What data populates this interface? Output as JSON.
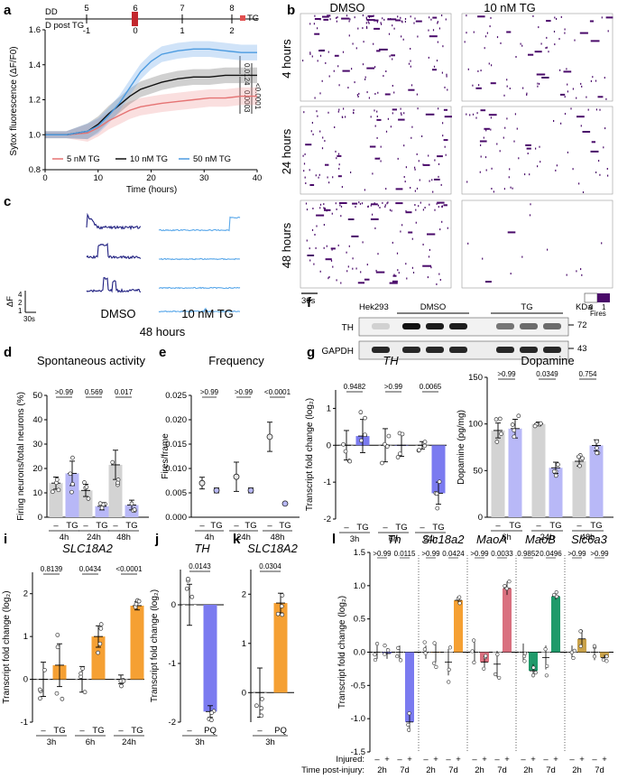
{
  "panel_labels": [
    "a",
    "b",
    "c",
    "d",
    "e",
    "f",
    "g",
    "h",
    "i",
    "j",
    "k",
    "l"
  ],
  "colors": {
    "tg_blue": "#7b7bf0",
    "tg_blue_light": "#b8b8f7",
    "orange": "#f5a033",
    "grey": "#d3d3d3",
    "dark_blue": "#1f1f80",
    "pink": "#d9707f",
    "green": "#1f9a6a",
    "gold": "#c9a24a",
    "raster_purple": "#4a0a6a"
  },
  "panel_a": {
    "timeline": {
      "dd_label": "DD",
      "post_label": "D post TG",
      "dd_ticks": [
        "5",
        "6",
        "7",
        "8"
      ],
      "post_ticks": [
        "-1",
        "0",
        "1",
        "2"
      ],
      "tg_label": "TG"
    },
    "ylabel": "Sytox fluorescence (ΔF/F0)",
    "xlabel": "Time (hours)",
    "legend": [
      "5 nM TG",
      "10 nM TG",
      "50 nM TG"
    ],
    "pvalues": [
      "<0.0001",
      "0.0003",
      "0.0124"
    ]
  },
  "panel_b": {
    "col_headers": [
      "DMSO",
      "10 nM TG"
    ],
    "row_labels": [
      "4 hours",
      "24 hours",
      "48 hours"
    ],
    "scalebar": "30s",
    "colorbar_ticks": [
      "0",
      "1"
    ],
    "colorbar_label": "Fires"
  },
  "panel_c": {
    "conditions": [
      "DMSO",
      "10 nM TG"
    ],
    "time": "48 hours",
    "scale_y": "ΔF",
    "scale_y_ticks": [
      "4",
      "2",
      "1"
    ],
    "scale_x": "30s"
  },
  "panel_f": {
    "lanes": [
      "Hek293",
      "DMSO",
      "TG"
    ],
    "unit": "KDa",
    "proteins": [
      "TH",
      "GAPDH"
    ],
    "markers": [
      "72",
      "43"
    ]
  },
  "chart_data": [
    {
      "panel": "a",
      "type": "line",
      "xlabel": "Time (hours)",
      "ylabel": "Sytox fluorescence (ΔF/F0)",
      "xlim": [
        0,
        40
      ],
      "ylim": [
        0.8,
        1.6
      ],
      "xticks": [
        "0",
        "10",
        "20",
        "30",
        "40"
      ],
      "yticks": [
        "0.8",
        "1.0",
        "1.2",
        "1.4",
        "1.6"
      ],
      "series": [
        {
          "name": "5 nM TG",
          "x": [
            0,
            4,
            8,
            10,
            12,
            14,
            16,
            18,
            20,
            22,
            25,
            28,
            31,
            34,
            37,
            40
          ],
          "y": [
            1.0,
            1.0,
            1.01,
            1.04,
            1.08,
            1.11,
            1.14,
            1.16,
            1.17,
            1.18,
            1.19,
            1.2,
            1.21,
            1.21,
            1.22,
            1.22
          ]
        },
        {
          "name": "10 nM TG",
          "x": [
            0,
            4,
            8,
            10,
            12,
            14,
            16,
            18,
            20,
            22,
            25,
            28,
            31,
            34,
            37,
            40
          ],
          "y": [
            1.0,
            1.0,
            1.02,
            1.06,
            1.12,
            1.17,
            1.22,
            1.26,
            1.28,
            1.3,
            1.32,
            1.33,
            1.33,
            1.34,
            1.34,
            1.34
          ]
        },
        {
          "name": "50 nM TG",
          "x": [
            0,
            4,
            8,
            10,
            12,
            14,
            16,
            18,
            20,
            22,
            25,
            28,
            31,
            34,
            37,
            40
          ],
          "y": [
            1.0,
            1.0,
            1.02,
            1.05,
            1.11,
            1.18,
            1.27,
            1.36,
            1.42,
            1.46,
            1.48,
            1.49,
            1.49,
            1.48,
            1.47,
            1.47
          ]
        }
      ]
    },
    {
      "panel": "d",
      "type": "bar",
      "title": "Spontaneous activity",
      "ylabel": "Firing neurons/total neurons (%)",
      "ylim": [
        0,
        50
      ],
      "yticks": [
        "0",
        "10",
        "20",
        "30",
        "40",
        "50"
      ],
      "categories": [
        "4h",
        "24h",
        "48h"
      ],
      "condition_labels": [
        "–",
        "TG"
      ],
      "series": [
        {
          "name": "–",
          "values": [
            14,
            11,
            21.5
          ],
          "errors": [
            2.5,
            2.5,
            6
          ]
        },
        {
          "name": "TG",
          "values": [
            18,
            4.5,
            5
          ],
          "errors": [
            5,
            1.5,
            2
          ]
        }
      ],
      "pvalues": [
        ">0.99",
        "0.569",
        "0.017"
      ]
    },
    {
      "panel": "e",
      "type": "scatter",
      "title": "Frequency",
      "ylabel": "Fires/frame",
      "ylim": [
        0,
        0.025
      ],
      "yticks": [
        "0.000",
        "0.005",
        "0.010",
        "0.015",
        "0.020",
        "0.025"
      ],
      "categories": [
        "4h",
        "24h",
        "48h"
      ],
      "condition_labels": [
        "–",
        "TG"
      ],
      "series": [
        {
          "name": "–",
          "values": [
            0.007,
            0.0083,
            0.0165
          ],
          "errors": [
            0.0012,
            0.003,
            0.003
          ]
        },
        {
          "name": "TG",
          "values": [
            0.0055,
            0.0055,
            0.0028
          ],
          "errors": [
            0.0005,
            0.0005,
            0.0002
          ]
        }
      ],
      "pvalues": [
        ">0.99",
        ">0.99",
        "<0.0001"
      ]
    },
    {
      "panel": "g",
      "type": "bar",
      "title": "TH",
      "ylabel": "Transcript fold change (log₂)",
      "ylim": [
        -2,
        1.5
      ],
      "yticks": [
        "-2",
        "-1",
        "0",
        "1"
      ],
      "categories": [
        "3h",
        "6h",
        "24h"
      ],
      "condition_labels": [
        "–",
        "TG"
      ],
      "series": [
        {
          "name": "–",
          "values": [
            0,
            0,
            0
          ],
          "errors": [
            0.4,
            0.45,
            0.1
          ]
        },
        {
          "name": "TG",
          "values": [
            0.25,
            0,
            -1.3
          ],
          "errors": [
            0.45,
            0.3,
            0.3
          ]
        }
      ],
      "pvalues": [
        "0.9482",
        ">0.99",
        "0.0065"
      ]
    },
    {
      "panel": "h",
      "type": "bar",
      "title": "Dopamine",
      "ylabel": "Dopamine (pg/mg)",
      "ylim": [
        0,
        150
      ],
      "yticks": [
        "0",
        "50",
        "100",
        "150"
      ],
      "categories": [
        "6h",
        "24h",
        "48h"
      ],
      "condition_labels": [
        "–",
        "TG"
      ],
      "series": [
        {
          "name": "–",
          "values": [
            93,
            100,
            60
          ],
          "errors": [
            8,
            2,
            5
          ]
        },
        {
          "name": "TG",
          "values": [
            95,
            53,
            77
          ],
          "errors": [
            10,
            6,
            6
          ]
        }
      ],
      "pvalues": [
        ">0.99",
        "0.0349",
        "0.754"
      ]
    },
    {
      "panel": "i",
      "type": "bar",
      "title": "SLC18A2",
      "ylabel": "Transcript fold change (log₂)",
      "ylim": [
        -1,
        2.5
      ],
      "yticks": [
        "-1",
        "0",
        "1",
        "2"
      ],
      "categories": [
        "3h",
        "6h",
        "24h"
      ],
      "condition_labels": [
        "–",
        "TG"
      ],
      "series": [
        {
          "name": "–",
          "values": [
            0,
            0,
            0
          ],
          "errors": [
            0.4,
            0.3,
            0.1
          ]
        },
        {
          "name": "TG",
          "values": [
            0.33,
            1.0,
            1.72
          ],
          "errors": [
            0.5,
            0.25,
            0.1
          ]
        }
      ],
      "pvalues": [
        "0.8139",
        "0.0434",
        "<0.0001"
      ]
    },
    {
      "panel": "j",
      "type": "bar",
      "title": "TH",
      "ylabel": "Transcript fold change (log₂)",
      "ylim": [
        -2,
        0.6
      ],
      "yticks": [
        "-2",
        "-1",
        "0"
      ],
      "categories": [
        "3h"
      ],
      "condition_labels": [
        "–",
        "PQ"
      ],
      "series": [
        {
          "name": "–",
          "values": [
            0
          ],
          "errors": [
            0.35
          ]
        },
        {
          "name": "PQ",
          "values": [
            -1.82
          ],
          "errors": [
            0.1
          ]
        }
      ],
      "pvalues": [
        "0.0143"
      ]
    },
    {
      "panel": "k",
      "type": "bar",
      "title": "SLC18A2",
      "ylabel": "",
      "ylim": [
        -0.6,
        2.5
      ],
      "yticks": [
        "0",
        "1",
        "2"
      ],
      "categories": [
        "3h"
      ],
      "condition_labels": [
        "–",
        "PQ"
      ],
      "series": [
        {
          "name": "–",
          "values": [
            0
          ],
          "errors": [
            0.5
          ]
        },
        {
          "name": "PQ",
          "values": [
            1.82
          ],
          "errors": [
            0.2
          ]
        }
      ],
      "pvalues": [
        "0.0304"
      ]
    },
    {
      "panel": "l",
      "type": "bar",
      "ylabel": "Transcript fold change (log₂)",
      "ylim": [
        -1.5,
        1.5
      ],
      "yticks": [
        "-1.5",
        "-1.0",
        "-0.5",
        "0.0",
        "0.5",
        "1.0",
        "1.5"
      ],
      "genes": [
        "Th",
        "Slc18a2",
        "MaoA",
        "MaoB",
        "Slc6a3"
      ],
      "injured_labels": [
        "–",
        "+",
        "–",
        "+"
      ],
      "time_labels": [
        "2h",
        "7d"
      ],
      "row_labels": [
        "Injured:",
        "Time post-injury:"
      ],
      "series": [
        {
          "gene": "Th",
          "values": [
            0,
            -0.02,
            0,
            -1.05
          ],
          "errors": [
            0.1,
            0.08,
            0.1,
            0.15
          ]
        },
        {
          "gene": "Slc18a2",
          "values": [
            0,
            0.0,
            -0.15,
            0.78
          ],
          "errors": [
            0.1,
            0.15,
            0.2,
            0.04
          ]
        },
        {
          "gene": "MaoA",
          "values": [
            0,
            -0.15,
            -0.18,
            0.96
          ],
          "errors": [
            0.15,
            0.1,
            0.2,
            0.1
          ]
        },
        {
          "gene": "MaoB",
          "values": [
            0,
            -0.28,
            -0.08,
            0.84
          ],
          "errors": [
            0.13,
            0.1,
            0.18,
            0.05
          ]
        },
        {
          "gene": "Slc6a3",
          "values": [
            0,
            0.2,
            0,
            -0.08
          ],
          "errors": [
            0.1,
            0.1,
            0.12,
            0.04
          ]
        }
      ],
      "pvalues": [
        ">0.99",
        "0.0115",
        ">0.99",
        "0.0424",
        ">0.99",
        "0.0033",
        "0.9852",
        "0.0496",
        ">0.99",
        ">0.99"
      ]
    }
  ]
}
